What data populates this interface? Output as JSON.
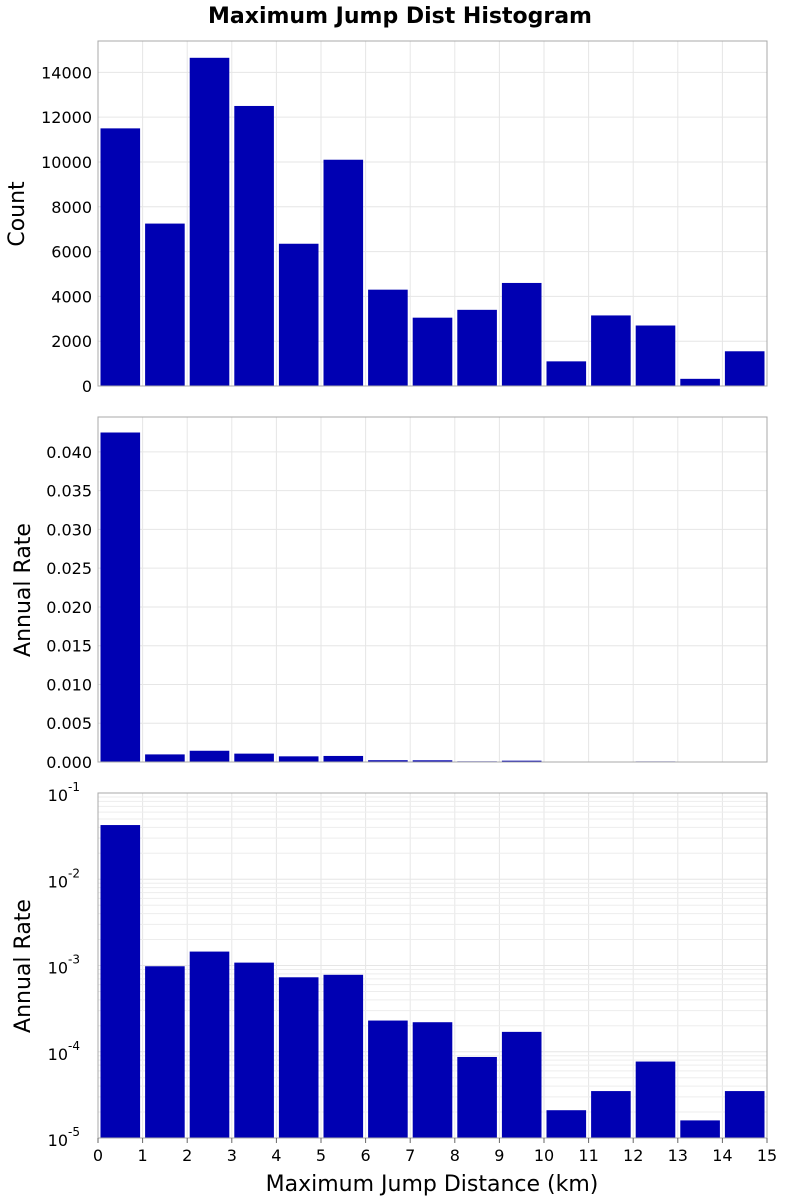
{
  "chart_data": {
    "type": "bar",
    "title": "Maximum Jump Dist Histogram",
    "xlabel": "Maximum Jump Distance (km)",
    "xlim": [
      0,
      15
    ],
    "xticks": [
      "0",
      "1",
      "2",
      "3",
      "4",
      "5",
      "6",
      "7",
      "8",
      "9",
      "10",
      "11",
      "12",
      "13",
      "14",
      "15"
    ],
    "bin_edges": [
      0,
      1,
      2,
      3,
      4,
      5,
      6,
      7,
      8,
      9,
      10,
      11,
      12,
      13,
      14,
      15
    ],
    "bar_color": "#0000b2",
    "grid": true,
    "panels": [
      {
        "ylabel": "Count",
        "scale": "linear",
        "ylim": [
          0,
          15400
        ],
        "yticks": [
          "0",
          "2000",
          "4000",
          "6000",
          "8000",
          "10000",
          "12000",
          "14000"
        ],
        "ytick_values": [
          0,
          2000,
          4000,
          6000,
          8000,
          10000,
          12000,
          14000
        ],
        "values": [
          11500,
          7250,
          14650,
          12500,
          6350,
          10100,
          4300,
          3050,
          3400,
          4600,
          1100,
          3150,
          2700,
          320,
          1550
        ]
      },
      {
        "ylabel": "Annual Rate",
        "scale": "linear",
        "ylim": [
          0,
          0.0445
        ],
        "yticks": [
          "0.000",
          "0.005",
          "0.010",
          "0.015",
          "0.020",
          "0.025",
          "0.030",
          "0.035",
          "0.040"
        ],
        "ytick_values": [
          0,
          0.005,
          0.01,
          0.015,
          0.02,
          0.025,
          0.03,
          0.035,
          0.04
        ],
        "values": [
          0.0425,
          0.00098,
          0.00145,
          0.00108,
          0.00073,
          0.00078,
          0.00023,
          0.00022,
          8.7e-05,
          0.00017,
          2.1e-05,
          3.5e-05,
          7.7e-05,
          1.6e-05,
          3.5e-05
        ]
      },
      {
        "ylabel": "Annual Rate",
        "scale": "log",
        "ylim": [
          1e-05,
          0.1
        ],
        "yticks_base": "10",
        "yticks_exp": [
          "-5",
          "-4",
          "-3",
          "-2",
          "-1"
        ],
        "ytick_values": [
          1e-05,
          0.0001,
          0.001,
          0.01,
          0.1
        ],
        "values": [
          0.0425,
          0.00098,
          0.00145,
          0.00108,
          0.00073,
          0.00078,
          0.00023,
          0.00022,
          8.7e-05,
          0.00017,
          2.1e-05,
          3.5e-05,
          7.7e-05,
          1.6e-05,
          3.5e-05
        ]
      }
    ]
  }
}
